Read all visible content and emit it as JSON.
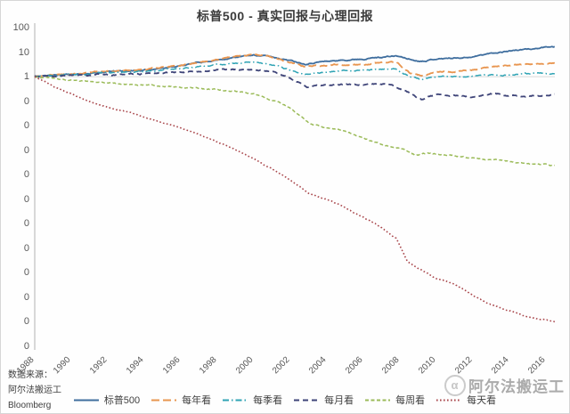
{
  "title": "标普500 - 真实回报与心理回报",
  "source": {
    "line1": "数据来源：",
    "line2": "阿尔法搬运工",
    "line3": "Bloomberg"
  },
  "watermark": {
    "logo_glyph": "α",
    "text": "阿尔法搬运工"
  },
  "chart_data": {
    "type": "line",
    "title": "标普500 - 真实回报与心理回报",
    "legend_position": "bottom",
    "grid": "single horizontal gridline at y=1 only",
    "x_axis": {
      "range": [
        1988,
        2016.5
      ],
      "tick_step_years": 2,
      "ticks": [
        "1988",
        "1990",
        "1992",
        "1994",
        "1996",
        "1998",
        "2000",
        "2002",
        "2004",
        "2006",
        "2008",
        "2010",
        "2012",
        "2014",
        "2016"
      ]
    },
    "y_axis": {
      "scale": "log10",
      "top_value": 100,
      "bottom_value": 1e-11,
      "tick_labels": [
        "100",
        "10",
        "1",
        "0",
        "0",
        "0",
        "0",
        "0",
        "0",
        "0",
        "0",
        "0",
        "0",
        "0"
      ],
      "gridline_value": 1
    },
    "series": [
      {
        "name": "标普500",
        "color": "#3f6e9e",
        "dash": "",
        "width": 1.8,
        "jitter": 0.028,
        "points": [
          [
            1988,
            1
          ],
          [
            1989,
            1.15
          ],
          [
            1990,
            1.25
          ],
          [
            1991,
            1.35
          ],
          [
            1992,
            1.6
          ],
          [
            1993,
            1.7
          ],
          [
            1994,
            1.8
          ],
          [
            1995,
            2.3
          ],
          [
            1996,
            2.8
          ],
          [
            1997,
            3.8
          ],
          [
            1998,
            4.8
          ],
          [
            1999,
            6.2
          ],
          [
            2000,
            7.5
          ],
          [
            2000.7,
            7.0
          ],
          [
            2001.8,
            5.0
          ],
          [
            2002.8,
            3.4
          ],
          [
            2003.5,
            4.0
          ],
          [
            2005,
            4.8
          ],
          [
            2006,
            5.5
          ],
          [
            2007.8,
            7.0
          ],
          [
            2008.8,
            4.6
          ],
          [
            2009.2,
            4.4
          ],
          [
            2010,
            5.4
          ],
          [
            2011,
            5.8
          ],
          [
            2012,
            6.5
          ],
          [
            2013,
            9.0
          ],
          [
            2014,
            11.5
          ],
          [
            2015,
            13.0
          ],
          [
            2016.5,
            16.5
          ]
        ]
      },
      {
        "name": "每年看",
        "color": "#e8954f",
        "dash": "9 4",
        "width": 1.8,
        "jitter": 0.03,
        "points": [
          [
            1988,
            1
          ],
          [
            1989,
            1.2
          ],
          [
            1990,
            1.3
          ],
          [
            1991,
            1.45
          ],
          [
            1992,
            1.7
          ],
          [
            1993,
            1.8
          ],
          [
            1994,
            1.9
          ],
          [
            1995,
            2.4
          ],
          [
            1996,
            2.9
          ],
          [
            1997,
            4.0
          ],
          [
            1998,
            5.2
          ],
          [
            1999,
            6.8
          ],
          [
            2000,
            8.3
          ],
          [
            2000.7,
            7.2
          ],
          [
            2001.8,
            4.3
          ],
          [
            2002.8,
            2.5
          ],
          [
            2003.5,
            2.9
          ],
          [
            2005,
            3.1
          ],
          [
            2006,
            3.3
          ],
          [
            2007.8,
            3.8
          ],
          [
            2008.6,
            1.3
          ],
          [
            2009.2,
            1.05
          ],
          [
            2010,
            1.5
          ],
          [
            2011,
            1.6
          ],
          [
            2012,
            1.9
          ],
          [
            2013,
            2.5
          ],
          [
            2014,
            3.0
          ],
          [
            2015,
            3.2
          ],
          [
            2016.5,
            3.7
          ]
        ]
      },
      {
        "name": "每季看",
        "color": "#2fa3b4",
        "dash": "7 3 1.5 3",
        "width": 1.5,
        "jitter": 0.03,
        "points": [
          [
            1988,
            1
          ],
          [
            1990,
            1.2
          ],
          [
            1992,
            1.5
          ],
          [
            1994,
            1.6
          ],
          [
            1996,
            2.1
          ],
          [
            1998,
            2.9
          ],
          [
            2000,
            3.9
          ],
          [
            2000.7,
            3.4
          ],
          [
            2001.8,
            2.1
          ],
          [
            2002.8,
            1.2
          ],
          [
            2003.5,
            1.5
          ],
          [
            2005,
            1.7
          ],
          [
            2006,
            1.85
          ],
          [
            2007.8,
            2.1
          ],
          [
            2008.6,
            0.95
          ],
          [
            2009.2,
            0.78
          ],
          [
            2010,
            1.0
          ],
          [
            2011,
            1.05
          ],
          [
            2012,
            1.0
          ],
          [
            2013,
            1.15
          ],
          [
            2014,
            1.25
          ],
          [
            2015,
            1.3
          ],
          [
            2016.5,
            1.35
          ]
        ]
      },
      {
        "name": "每月看",
        "color": "#3e4478",
        "dash": "6 4",
        "width": 1.8,
        "jitter": 0.032,
        "points": [
          [
            1988,
            1
          ],
          [
            1990,
            1.05
          ],
          [
            1992,
            1.25
          ],
          [
            1994,
            1.3
          ],
          [
            1996,
            1.55
          ],
          [
            1998,
            1.8
          ],
          [
            2000,
            2.0
          ],
          [
            2000.7,
            1.8
          ],
          [
            2001.8,
            1.1
          ],
          [
            2002.5,
            0.6
          ],
          [
            2002.9,
            0.4
          ],
          [
            2003.5,
            0.45
          ],
          [
            2005,
            0.48
          ],
          [
            2006,
            0.45
          ],
          [
            2007.5,
            0.5
          ],
          [
            2008.5,
            0.22
          ],
          [
            2009.2,
            0.11
          ],
          [
            2010,
            0.2
          ],
          [
            2011,
            0.17
          ],
          [
            2012,
            0.14
          ],
          [
            2013,
            0.2
          ],
          [
            2014,
            0.17
          ],
          [
            2015,
            0.16
          ],
          [
            2016.5,
            0.19
          ]
        ]
      },
      {
        "name": "每周看",
        "color": "#9bbb59",
        "dash": "4 2.5",
        "width": 1.5,
        "jitter": 0.03,
        "points": [
          [
            1988,
            1
          ],
          [
            1989,
            0.85
          ],
          [
            1990,
            0.72
          ],
          [
            1991,
            0.62
          ],
          [
            1992,
            0.56
          ],
          [
            1993,
            0.5
          ],
          [
            1994,
            0.45
          ],
          [
            1995,
            0.41
          ],
          [
            1996,
            0.36
          ],
          [
            1997,
            0.32
          ],
          [
            1998,
            0.3
          ],
          [
            1999,
            0.25
          ],
          [
            2000,
            0.2
          ],
          [
            2001,
            0.11
          ],
          [
            2002,
            0.05
          ],
          [
            2003,
            0.014
          ],
          [
            2004,
            0.008
          ],
          [
            2005,
            0.006
          ],
          [
            2006,
            0.003
          ],
          [
            2007,
            0.0018
          ],
          [
            2008,
            0.0012
          ],
          [
            2008.8,
            0.00065
          ],
          [
            2009.5,
            0.00075
          ],
          [
            2010,
            0.0007
          ],
          [
            2011,
            0.0006
          ],
          [
            2012,
            0.0005
          ],
          [
            2013,
            0.00042
          ],
          [
            2014,
            0.00035
          ],
          [
            2015,
            0.00028
          ],
          [
            2016.5,
            0.00023
          ]
        ]
      },
      {
        "name": "每天看",
        "color": "#a8454a",
        "dash": "1.6 2.4",
        "width": 1.6,
        "jitter": 0.02,
        "points": [
          [
            1988,
            1
          ],
          [
            1988.5,
            0.65
          ],
          [
            1989,
            0.4
          ],
          [
            1990,
            0.2
          ],
          [
            1991,
            0.1
          ],
          [
            1992,
            0.055
          ],
          [
            1993,
            0.038
          ],
          [
            1994,
            0.022
          ],
          [
            1995,
            0.013
          ],
          [
            1996,
            0.008
          ],
          [
            1997,
            0.0045
          ],
          [
            1998,
            0.0022
          ],
          [
            1999,
            0.001
          ],
          [
            2000,
            0.00045
          ],
          [
            2001,
            0.00017
          ],
          [
            2002,
            6e-05
          ],
          [
            2003,
            1.8e-05
          ],
          [
            2004,
            1e-05
          ],
          [
            2005,
            4.5e-06
          ],
          [
            2006,
            1.8e-06
          ],
          [
            2007,
            7e-07
          ],
          [
            2007.8,
            2.5e-07
          ],
          [
            2008.4,
            3e-08
          ],
          [
            2009,
            1.5e-08
          ],
          [
            2010,
            6e-09
          ],
          [
            2011,
            3.5e-09
          ],
          [
            2012,
            1.2e-09
          ],
          [
            2013,
            5e-10
          ],
          [
            2014,
            2.8e-10
          ],
          [
            2015,
            1.6e-10
          ],
          [
            2016.5,
            1e-10
          ]
        ]
      }
    ],
    "style_hints": {
      "axis_line_color": "#bfbfbf",
      "gridline_color": "#d9d9d9"
    }
  }
}
